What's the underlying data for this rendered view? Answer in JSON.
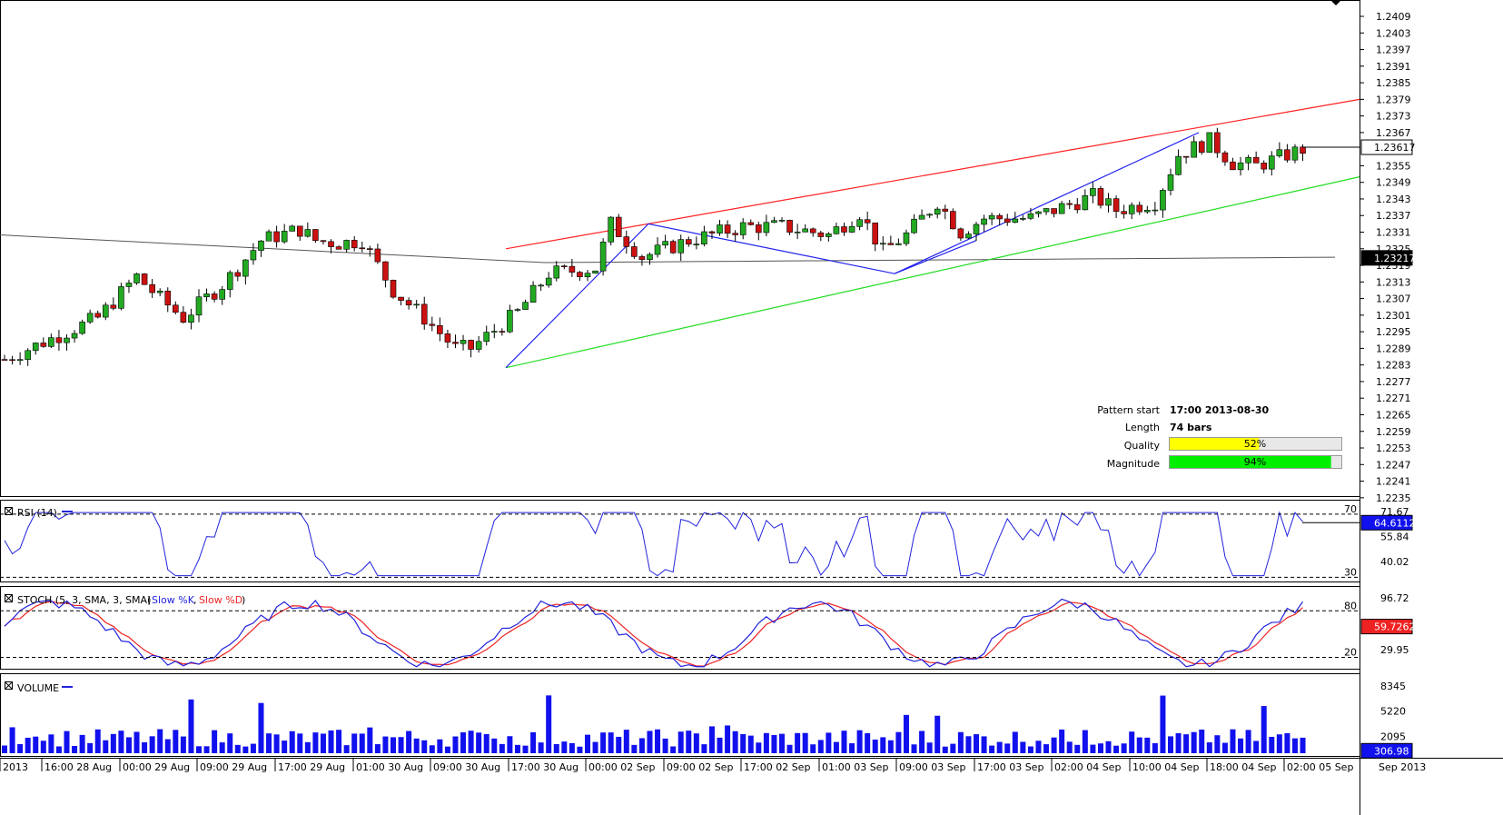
{
  "chart_data": {
    "type": "candlestick",
    "price_axis": {
      "ticks": [
        "1.2409",
        "1.2403",
        "1.2397",
        "1.2391",
        "1.2385",
        "1.2379",
        "1.2373",
        "1.2367",
        "1.2355",
        "1.2349",
        "1.2343",
        "1.2337",
        "1.2331",
        "1.2325",
        "1.2319",
        "1.2313",
        "1.2307",
        "1.2301",
        "1.2295",
        "1.2289",
        "1.2283",
        "1.2277",
        "1.2271",
        "1.2265",
        "1.2259",
        "1.2253",
        "1.2247",
        "1.2241",
        "1.2235"
      ],
      "range": [
        1.2233,
        1.2412
      ],
      "current_price": "1.23617",
      "ma_price": "1.23217"
    },
    "time_axis": [
      "2013",
      "16:00 28 Aug",
      "00:00 29 Aug",
      "09:00 29 Aug",
      "17:00 29 Aug",
      "01:00 30 Aug",
      "09:00 30 Aug",
      "17:00 30 Aug",
      "00:00 02 Sep",
      "09:00 02 Sep",
      "17:00 02 Sep",
      "01:00 03 Sep",
      "09:00 03 Sep",
      "17:00 03 Sep",
      "02:00 04 Sep",
      "10:00 04 Sep",
      "18:00 04 Sep",
      "02:00 05 Sep",
      "Sep 2013"
    ],
    "pattern_info": {
      "start_label": "Pattern start",
      "start_value": "17:00 2013-08-30",
      "length_label": "Length",
      "length_value": "74 bars",
      "quality_label": "Quality",
      "quality_value": "52%",
      "quality_fraction": 0.52,
      "magnitude_label": "Magnitude",
      "magnitude_value": "94%",
      "magnitude_fraction": 0.94
    },
    "rsi_panel": {
      "title": "RSI (14)",
      "ticks": [
        "71.67",
        "55.84",
        "40.02"
      ],
      "levels": [
        "70",
        "30"
      ],
      "current": "64.61122"
    },
    "stoch_panel": {
      "title": "STOCH (5, 3, SMA, 3, SMA)",
      "series": [
        "Slow %K",
        "Slow %D"
      ],
      "ticks": [
        "96.72",
        "29.95"
      ],
      "levels": [
        "80",
        "20"
      ],
      "current_k": "59.72624"
    },
    "volume_panel": {
      "title": "VOLUME",
      "ticks": [
        "8345",
        "5220",
        "2095"
      ],
      "current": "306.98"
    },
    "colors": {
      "bull": "#22aa22",
      "bear": "#cc1111",
      "rsi": "#2222dd",
      "stoch_k": "#2222dd",
      "stoch_d": "#ee2222",
      "volume": "#1111ee",
      "resistance": "#ff2222",
      "support": "#22dd22",
      "zigzag": "#2222ee",
      "quality_bar": "#ffff00",
      "magnitude_bar": "#00ee00"
    }
  }
}
